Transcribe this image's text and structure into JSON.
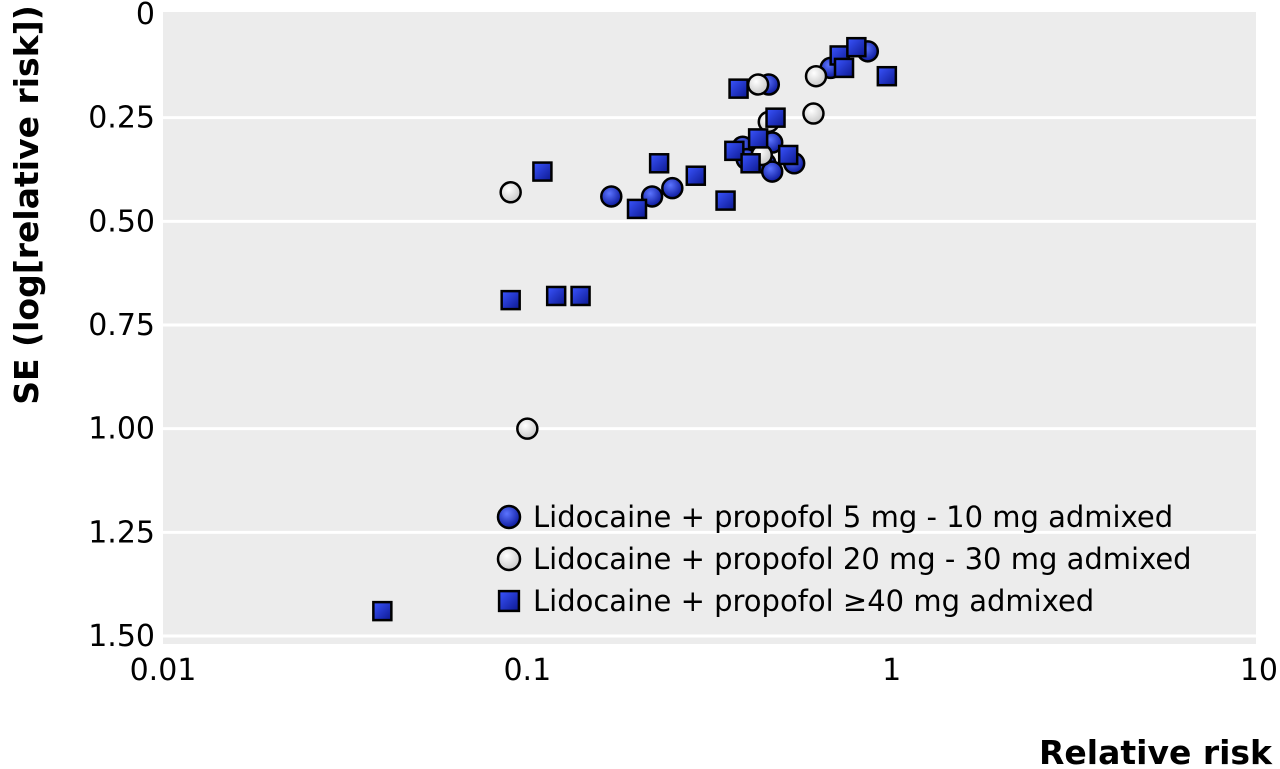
{
  "chart_data": {
    "type": "scatter",
    "title": "",
    "xlabel": "Relative risk",
    "ylabel": "SE (log[relative risk])",
    "x_scale": "log",
    "xlim": [
      0.01,
      10
    ],
    "ylim": [
      0,
      1.5
    ],
    "y_inverted": true,
    "x_ticks": [
      0.01,
      0.1,
      1,
      10
    ],
    "x_tick_labels": [
      "0.01",
      "0.1",
      "1",
      "10"
    ],
    "y_ticks": [
      0,
      0.25,
      0.5,
      0.75,
      1.0,
      1.25,
      1.5
    ],
    "y_tick_labels": [
      "0",
      "0.25",
      "0.50",
      "0.75",
      "1.00",
      "1.25",
      "1.50"
    ],
    "grid": "horizontal",
    "background": "#ececec",
    "legend_position": "bottom-right",
    "series": [
      {
        "name": "Lidocaine + propofol 5 mg - 10 mg admixed",
        "marker": "circle",
        "color": "#1a2fd6",
        "points": [
          [
            0.17,
            0.44
          ],
          [
            0.22,
            0.44
          ],
          [
            0.25,
            0.42
          ],
          [
            0.39,
            0.32
          ],
          [
            0.4,
            0.35
          ],
          [
            0.45,
            0.36
          ],
          [
            0.47,
            0.31
          ],
          [
            0.47,
            0.38
          ],
          [
            0.54,
            0.36
          ],
          [
            0.46,
            0.17
          ],
          [
            0.68,
            0.13
          ],
          [
            0.86,
            0.09
          ]
        ]
      },
      {
        "name": "Lidocaine + propofol 20 mg - 30 mg admixed",
        "marker": "circle",
        "color": "#ffffff",
        "points": [
          [
            0.09,
            0.43
          ],
          [
            0.1,
            1.0
          ],
          [
            0.43,
            0.17
          ],
          [
            0.46,
            0.26
          ],
          [
            0.61,
            0.24
          ],
          [
            0.62,
            0.15
          ],
          [
            0.44,
            0.34
          ]
        ]
      },
      {
        "name": "Lidocaine + propofol ≥40 mg admixed",
        "marker": "square",
        "color": "#1a2fd6",
        "points": [
          [
            0.04,
            1.44
          ],
          [
            0.09,
            0.69
          ],
          [
            0.11,
            0.38
          ],
          [
            0.12,
            0.68
          ],
          [
            0.14,
            0.68
          ],
          [
            0.2,
            0.47
          ],
          [
            0.23,
            0.36
          ],
          [
            0.29,
            0.39
          ],
          [
            0.35,
            0.45
          ],
          [
            0.37,
            0.33
          ],
          [
            0.38,
            0.18
          ],
          [
            0.41,
            0.36
          ],
          [
            0.43,
            0.3
          ],
          [
            0.48,
            0.25
          ],
          [
            0.52,
            0.34
          ],
          [
            0.72,
            0.1
          ],
          [
            0.74,
            0.13
          ],
          [
            0.8,
            0.08
          ],
          [
            0.97,
            0.15
          ]
        ]
      }
    ]
  }
}
